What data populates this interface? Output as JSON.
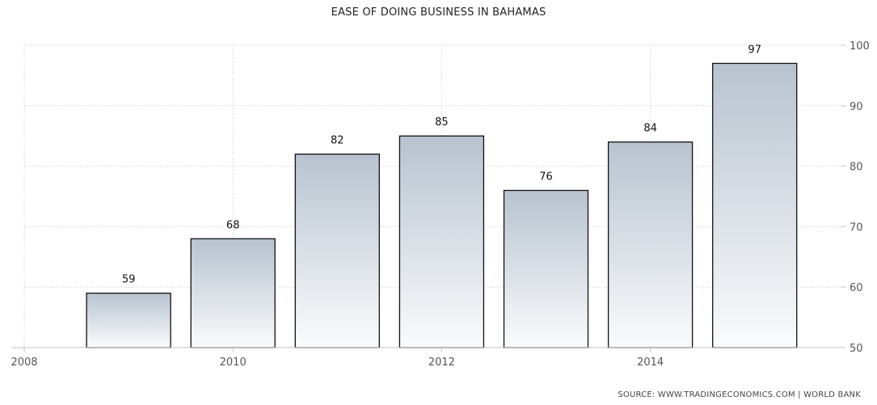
{
  "chart_data": {
    "type": "bar",
    "title": "EASE OF DOING BUSINESS IN BAHAMAS",
    "source": "SOURCE: WWW.TRADINGECONOMICS.COM | WORLD BANK",
    "categories": [
      "2009",
      "2010",
      "2011",
      "2012",
      "2013",
      "2014",
      "2015"
    ],
    "values": [
      59,
      68,
      82,
      85,
      76,
      84,
      97
    ],
    "x_ticks": [
      "2008",
      "2010",
      "2012",
      "2014"
    ],
    "y_ticks": [
      "50",
      "60",
      "70",
      "80",
      "90",
      "100"
    ],
    "ylim": [
      50,
      100
    ],
    "y_axis_side": "right",
    "grid": true,
    "bar_color_top": "#b8c3cf",
    "bar_color_bottom": "#fafbfc",
    "bar_outline": "#111111"
  }
}
